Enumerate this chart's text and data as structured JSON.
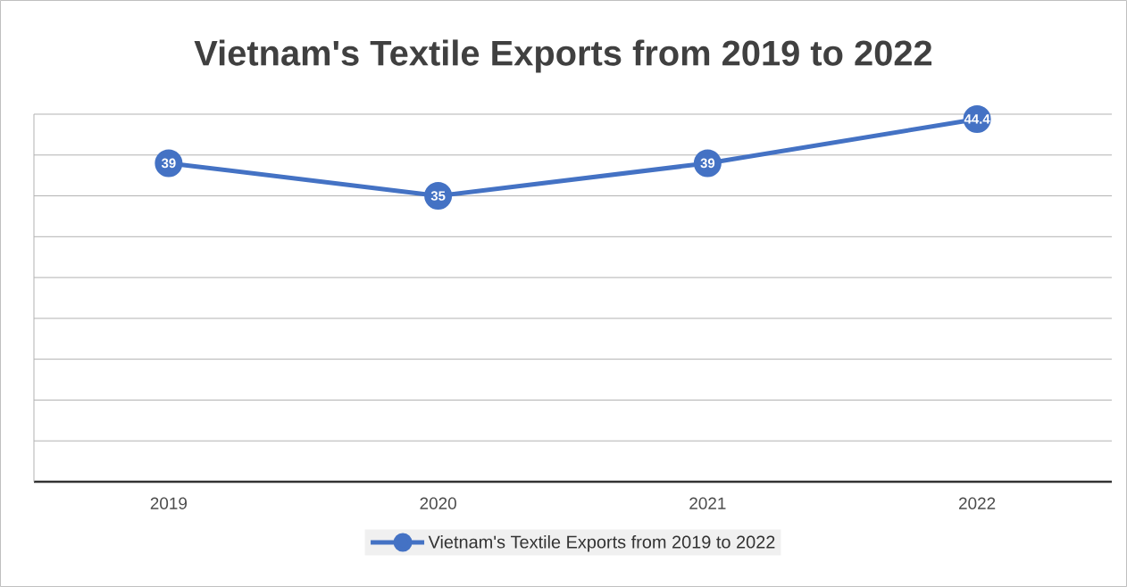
{
  "chart_data": {
    "type": "line",
    "title": "Vietnam's Textile Exports from 2019 to 2022",
    "categories": [
      "2019",
      "2020",
      "2021",
      "2022"
    ],
    "series": [
      {
        "name": "Vietnam's Textile Exports from 2019 to 2022",
        "color": "#4472c4",
        "values": [
          39,
          35,
          39,
          44.4
        ]
      }
    ],
    "ylim": [
      0,
      45
    ],
    "yticks": [
      {
        "value": 0,
        "label": null
      },
      {
        "value": 5,
        "label": null
      },
      {
        "value": 10,
        "label": null
      },
      {
        "value": 15,
        "label": null
      },
      {
        "value": 20,
        "label": null
      },
      {
        "value": 25,
        "label": null
      },
      {
        "value": 30,
        "label": null
      },
      {
        "value": 35,
        "label": null
      },
      {
        "value": 40,
        "label": null
      },
      {
        "value": 45,
        "label": null
      }
    ],
    "grid": "y",
    "legend": "bottom",
    "marker": "circle",
    "line_style": "solid",
    "data_labels": true,
    "tick_labels": "x"
  }
}
